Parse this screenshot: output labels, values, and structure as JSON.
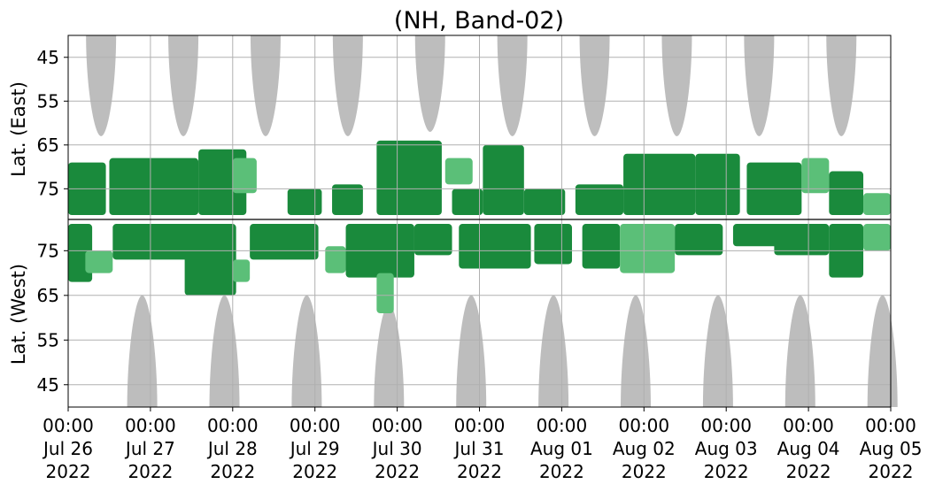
{
  "chart_data": {
    "type": "heatmap",
    "title": "(NH, Band-02)",
    "ylabel_upper": "Lat. (East)",
    "ylabel_lower": "Lat. (West)",
    "x_range": [
      "2022-07-26 00:00",
      "2022-08-05 00:00"
    ],
    "x_ticks": [
      {
        "time": "00:00",
        "date": "Jul 26",
        "year": "2022"
      },
      {
        "time": "00:00",
        "date": "Jul 27",
        "year": "2022"
      },
      {
        "time": "00:00",
        "date": "Jul 28",
        "year": "2022"
      },
      {
        "time": "00:00",
        "date": "Jul 29",
        "year": "2022"
      },
      {
        "time": "00:00",
        "date": "Jul 30",
        "year": "2022"
      },
      {
        "time": "00:00",
        "date": "Jul 31",
        "year": "2022"
      },
      {
        "time": "00:00",
        "date": "Aug 01",
        "year": "2022"
      },
      {
        "time": "00:00",
        "date": "Aug 02",
        "year": "2022"
      },
      {
        "time": "00:00",
        "date": "Aug 03",
        "year": "2022"
      },
      {
        "time": "00:00",
        "date": "Aug 04",
        "year": "2022"
      },
      {
        "time": "00:00",
        "date": "Aug 05",
        "year": "2022"
      }
    ],
    "y_ticks_upper": [
      "45",
      "55",
      "65",
      "75"
    ],
    "y_ticks_lower": [
      "75",
      "65",
      "55",
      "45"
    ],
    "y_range_upper": [
      40,
      82
    ],
    "y_range_lower": [
      82,
      40
    ],
    "grid": true,
    "colors": {
      "no_data": "#bdbdbd",
      "strong": "#1a8a3c",
      "weak": "#5bbf78",
      "divider": "#000000",
      "grid": "#b0b0b0"
    },
    "no_data_upper": [
      {
        "center": "2022-07-26 09:36",
        "bottom_lat": 63
      },
      {
        "center": "2022-07-27 09:36",
        "bottom_lat": 63
      },
      {
        "center": "2022-07-28 09:36",
        "bottom_lat": 63
      },
      {
        "center": "2022-07-29 09:36",
        "bottom_lat": 63
      },
      {
        "center": "2022-07-30 09:36",
        "bottom_lat": 62
      },
      {
        "center": "2022-07-31 09:36",
        "bottom_lat": 63
      },
      {
        "center": "2022-08-01 09:36",
        "bottom_lat": 63
      },
      {
        "center": "2022-08-02 09:36",
        "bottom_lat": 63
      },
      {
        "center": "2022-08-03 09:36",
        "bottom_lat": 63
      },
      {
        "center": "2022-08-04 09:36",
        "bottom_lat": 63
      }
    ],
    "no_data_lower": [
      {
        "center": "2022-07-26 21:36",
        "top_lat": 65
      },
      {
        "center": "2022-07-27 21:36",
        "top_lat": 65
      },
      {
        "center": "2022-07-28 21:36",
        "top_lat": 65
      },
      {
        "center": "2022-07-29 21:36",
        "top_lat": 63
      },
      {
        "center": "2022-07-30 21:36",
        "top_lat": 65
      },
      {
        "center": "2022-07-31 21:36",
        "top_lat": 65
      },
      {
        "center": "2022-08-01 21:36",
        "top_lat": 65
      },
      {
        "center": "2022-08-02 21:36",
        "top_lat": 65
      },
      {
        "center": "2022-08-03 21:36",
        "top_lat": 65
      },
      {
        "center": "2022-08-04 21:36",
        "top_lat": 65
      }
    ],
    "activity_upper": [
      {
        "start": "2022-07-26 00:00",
        "end": "2022-07-26 11:00",
        "lat_min": 69,
        "lat_max": 81,
        "level": "strong"
      },
      {
        "start": "2022-07-26 12:00",
        "end": "2022-07-27 14:00",
        "lat_min": 68,
        "lat_max": 81,
        "level": "strong"
      },
      {
        "start": "2022-07-27 14:00",
        "end": "2022-07-28 04:00",
        "lat_min": 66,
        "lat_max": 81,
        "level": "strong"
      },
      {
        "start": "2022-07-28 00:00",
        "end": "2022-07-28 07:00",
        "lat_min": 68,
        "lat_max": 76,
        "level": "weak"
      },
      {
        "start": "2022-07-28 16:00",
        "end": "2022-07-29 02:00",
        "lat_min": 75,
        "lat_max": 81,
        "level": "strong"
      },
      {
        "start": "2022-07-29 05:00",
        "end": "2022-07-29 14:00",
        "lat_min": 74,
        "lat_max": 81,
        "level": "strong"
      },
      {
        "start": "2022-07-29 18:00",
        "end": "2022-07-30 13:00",
        "lat_min": 64,
        "lat_max": 81,
        "level": "strong"
      },
      {
        "start": "2022-07-30 14:00",
        "end": "2022-07-30 22:00",
        "lat_min": 68,
        "lat_max": 74,
        "level": "weak"
      },
      {
        "start": "2022-07-30 16:00",
        "end": "2022-07-31 01:00",
        "lat_min": 75,
        "lat_max": 81,
        "level": "strong"
      },
      {
        "start": "2022-07-31 01:00",
        "end": "2022-07-31 13:00",
        "lat_min": 65,
        "lat_max": 81,
        "level": "strong"
      },
      {
        "start": "2022-07-31 13:00",
        "end": "2022-08-01 01:00",
        "lat_min": 75,
        "lat_max": 81,
        "level": "strong"
      },
      {
        "start": "2022-08-01 04:00",
        "end": "2022-08-01 18:00",
        "lat_min": 74,
        "lat_max": 81,
        "level": "strong"
      },
      {
        "start": "2022-08-01 18:00",
        "end": "2022-08-02 15:00",
        "lat_min": 67,
        "lat_max": 81,
        "level": "strong"
      },
      {
        "start": "2022-08-02 15:00",
        "end": "2022-08-03 04:00",
        "lat_min": 67,
        "lat_max": 81,
        "level": "strong"
      },
      {
        "start": "2022-08-03 06:00",
        "end": "2022-08-03 22:00",
        "lat_min": 69,
        "lat_max": 81,
        "level": "strong"
      },
      {
        "start": "2022-08-03 22:00",
        "end": "2022-08-04 06:00",
        "lat_min": 68,
        "lat_max": 76,
        "level": "weak"
      },
      {
        "start": "2022-08-04 06:00",
        "end": "2022-08-04 16:00",
        "lat_min": 71,
        "lat_max": 81,
        "level": "strong"
      },
      {
        "start": "2022-08-04 16:00",
        "end": "2022-08-05 00:00",
        "lat_min": 76,
        "lat_max": 81,
        "level": "weak"
      }
    ],
    "activity_lower": [
      {
        "start": "2022-07-26 00:00",
        "end": "2022-07-26 07:00",
        "lat_min": 68,
        "lat_max": 81,
        "level": "strong"
      },
      {
        "start": "2022-07-26 05:00",
        "end": "2022-07-26 13:00",
        "lat_min": 70,
        "lat_max": 75,
        "level": "weak"
      },
      {
        "start": "2022-07-26 13:00",
        "end": "2022-07-27 18:00",
        "lat_min": 73,
        "lat_max": 81,
        "level": "strong"
      },
      {
        "start": "2022-07-27 10:00",
        "end": "2022-07-28 01:00",
        "lat_min": 65,
        "lat_max": 81,
        "level": "strong"
      },
      {
        "start": "2022-07-28 00:00",
        "end": "2022-07-28 05:00",
        "lat_min": 68,
        "lat_max": 73,
        "level": "weak"
      },
      {
        "start": "2022-07-28 05:00",
        "end": "2022-07-29 01:00",
        "lat_min": 73,
        "lat_max": 81,
        "level": "strong"
      },
      {
        "start": "2022-07-29 03:00",
        "end": "2022-07-29 09:00",
        "lat_min": 70,
        "lat_max": 76,
        "level": "weak"
      },
      {
        "start": "2022-07-29 09:00",
        "end": "2022-07-30 05:00",
        "lat_min": 69,
        "lat_max": 81,
        "level": "strong"
      },
      {
        "start": "2022-07-29 18:00",
        "end": "2022-07-29 23:00",
        "lat_min": 61,
        "lat_max": 70,
        "level": "weak"
      },
      {
        "start": "2022-07-30 05:00",
        "end": "2022-07-30 16:00",
        "lat_min": 74,
        "lat_max": 81,
        "level": "strong"
      },
      {
        "start": "2022-07-30 18:00",
        "end": "2022-07-31 15:00",
        "lat_min": 71,
        "lat_max": 81,
        "level": "strong"
      },
      {
        "start": "2022-07-31 16:00",
        "end": "2022-08-01 03:00",
        "lat_min": 72,
        "lat_max": 81,
        "level": "strong"
      },
      {
        "start": "2022-08-01 06:00",
        "end": "2022-08-01 17:00",
        "lat_min": 71,
        "lat_max": 81,
        "level": "strong"
      },
      {
        "start": "2022-08-01 17:00",
        "end": "2022-08-02 09:00",
        "lat_min": 70,
        "lat_max": 81,
        "level": "weak"
      },
      {
        "start": "2022-08-02 09:00",
        "end": "2022-08-02 23:00",
        "lat_min": 74,
        "lat_max": 81,
        "level": "strong"
      },
      {
        "start": "2022-08-03 02:00",
        "end": "2022-08-03 16:00",
        "lat_min": 76,
        "lat_max": 81,
        "level": "strong"
      },
      {
        "start": "2022-08-03 14:00",
        "end": "2022-08-04 06:00",
        "lat_min": 74,
        "lat_max": 81,
        "level": "strong"
      },
      {
        "start": "2022-08-04 06:00",
        "end": "2022-08-04 16:00",
        "lat_min": 69,
        "lat_max": 81,
        "level": "strong"
      },
      {
        "start": "2022-08-04 16:00",
        "end": "2022-08-05 00:00",
        "lat_min": 75,
        "lat_max": 81,
        "level": "weak"
      }
    ]
  }
}
